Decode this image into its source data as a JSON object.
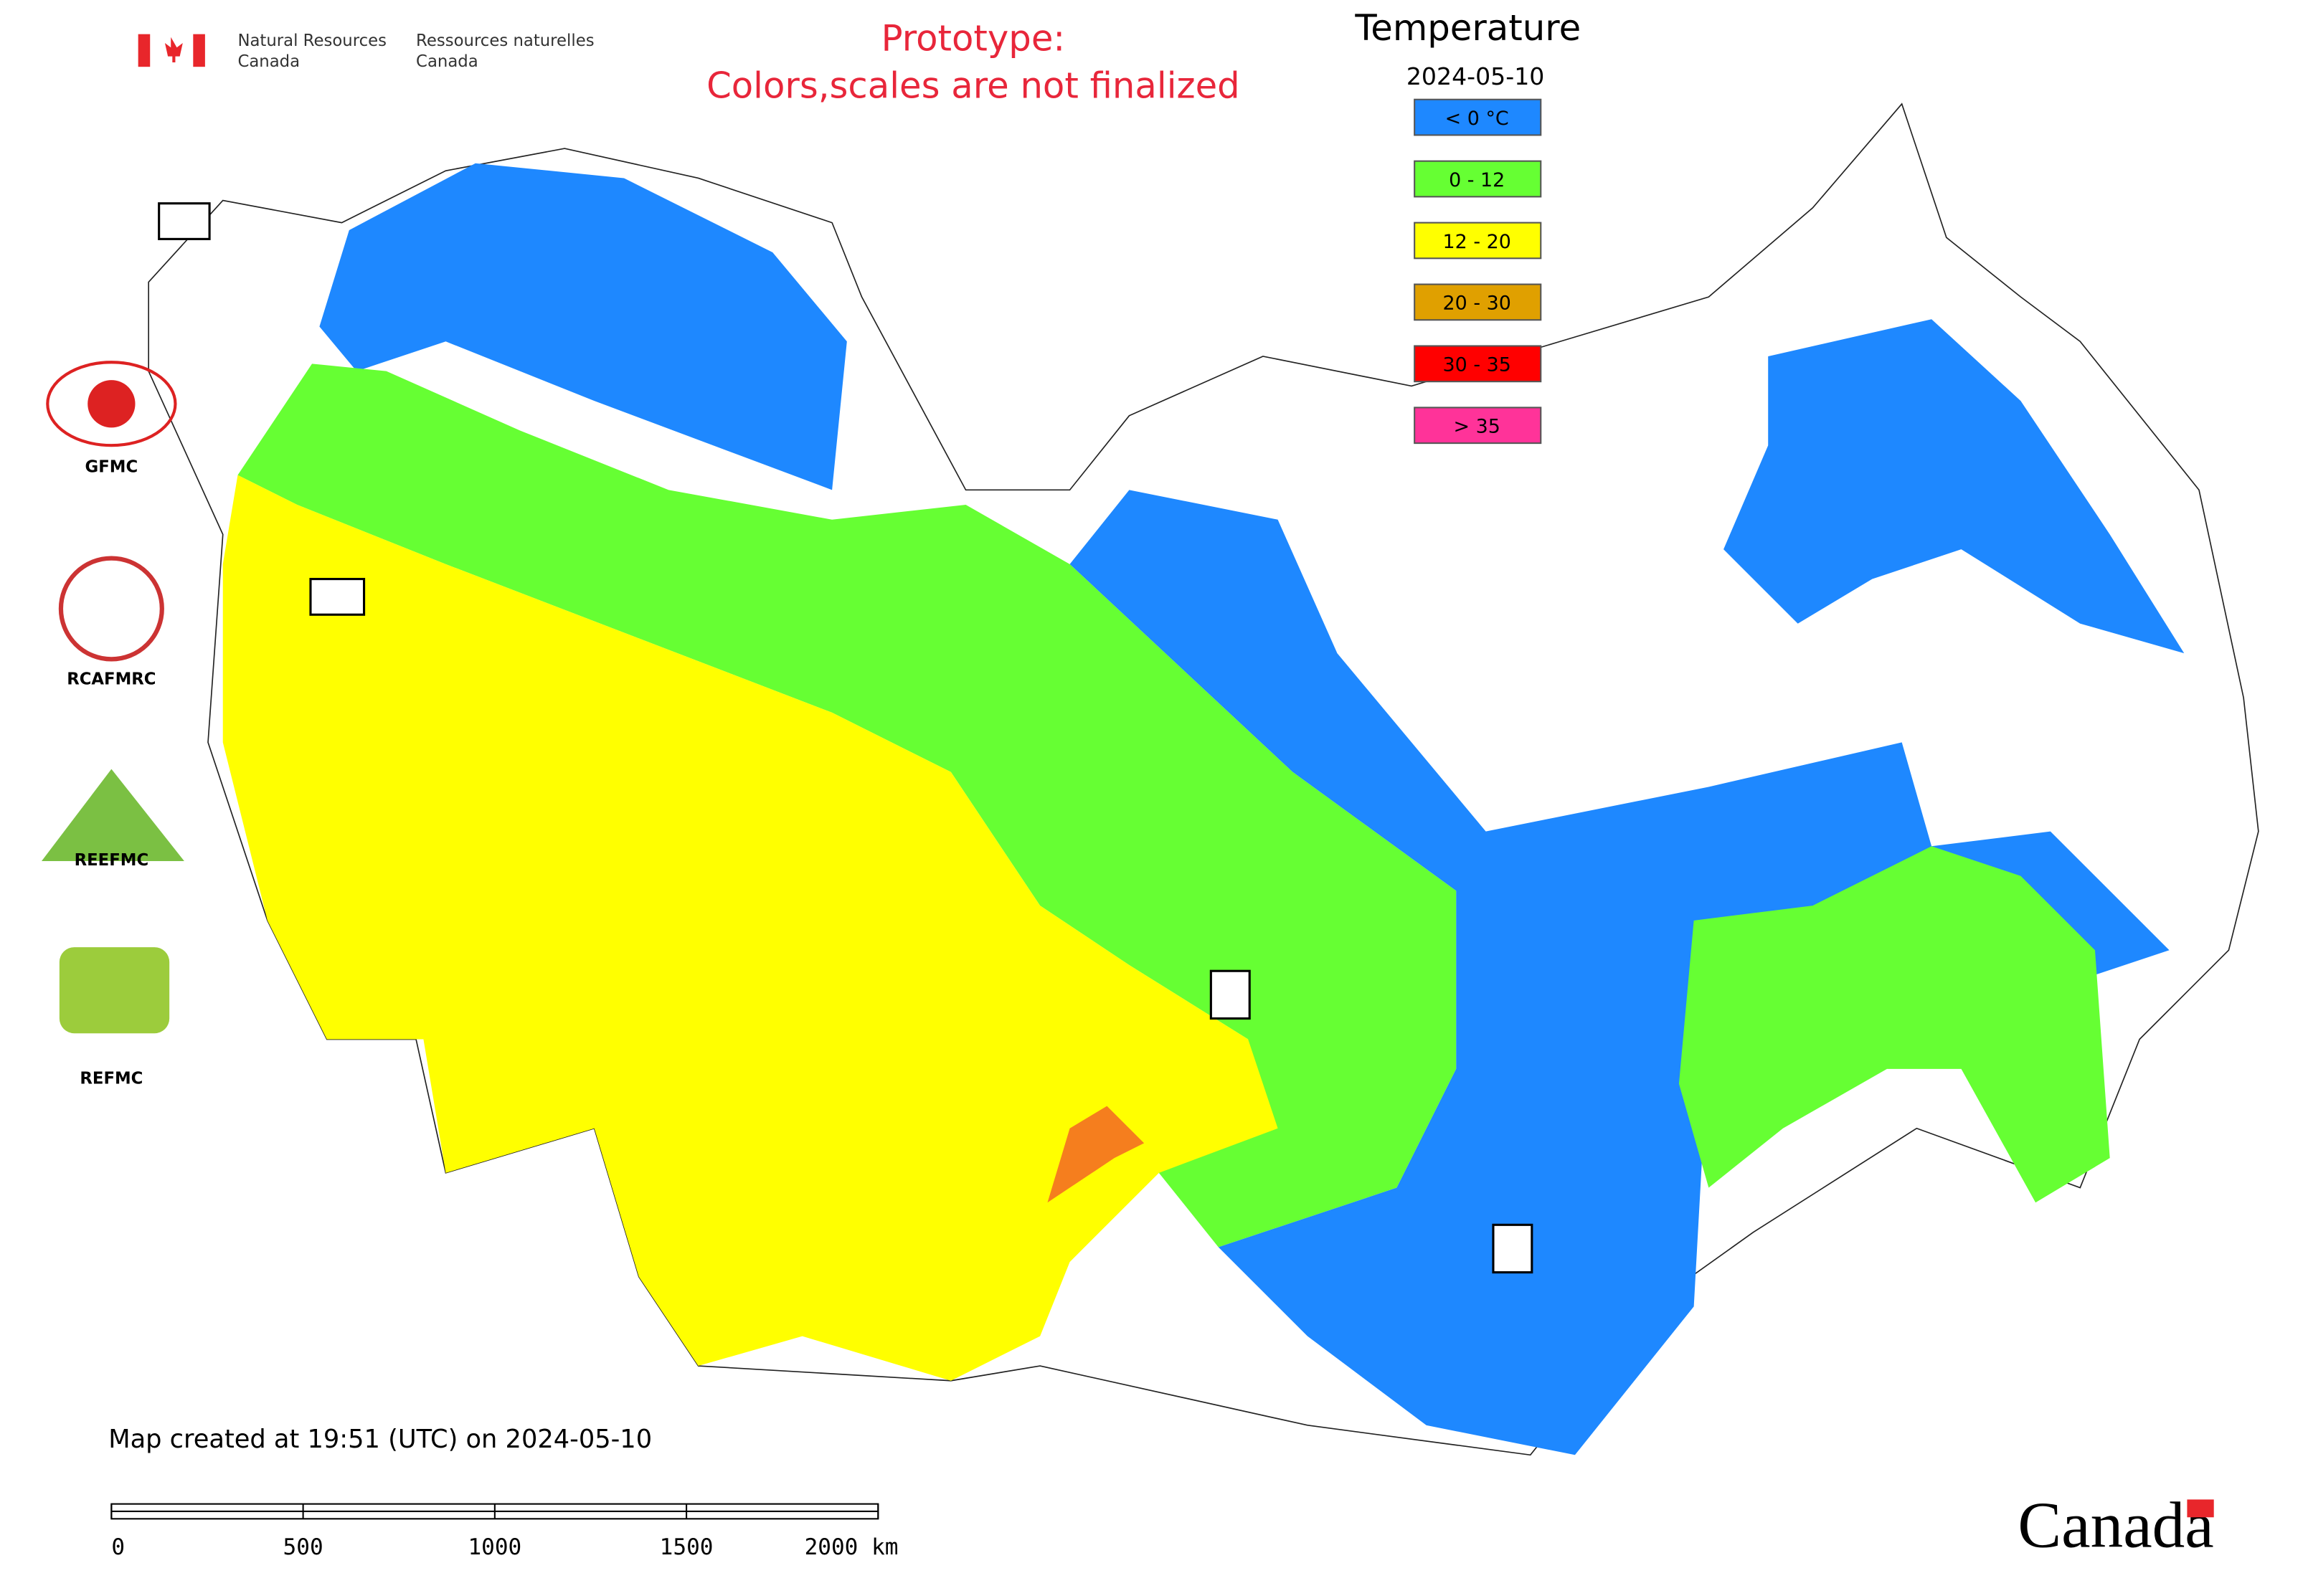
{
  "header": {
    "en_line1": "Natural Resources",
    "en_line2": "Canada",
    "fr_line1": "Ressources naturelles",
    "fr_line2": "Canada"
  },
  "notice": {
    "line1": "Prototype:",
    "line2": "Colors,scales are not finalized"
  },
  "legend": {
    "title": "Temperature",
    "date": "2024-05-10",
    "items": [
      {
        "label": "< 0 °C",
        "color": "#1e88ff"
      },
      {
        "label": "0 - 12",
        "color": "#66ff33"
      },
      {
        "label": "12 - 20",
        "color": "#ffff00"
      },
      {
        "label": "20 - 30",
        "color": "#e0a000"
      },
      {
        "label": "30 - 35",
        "color": "#ff0000"
      },
      {
        "label": "> 35",
        "color": "#ff3399"
      }
    ]
  },
  "logos": [
    "GFMC",
    "RCAFMRC",
    "REEFMC",
    "REFMC"
  ],
  "footer": {
    "created": "Map created at 19:51 (UTC) on 2024-05-10",
    "wordmark": "Canada"
  },
  "scale_bar": {
    "ticks": [
      "0",
      "500",
      "1000",
      "1500",
      "2000 km"
    ]
  }
}
